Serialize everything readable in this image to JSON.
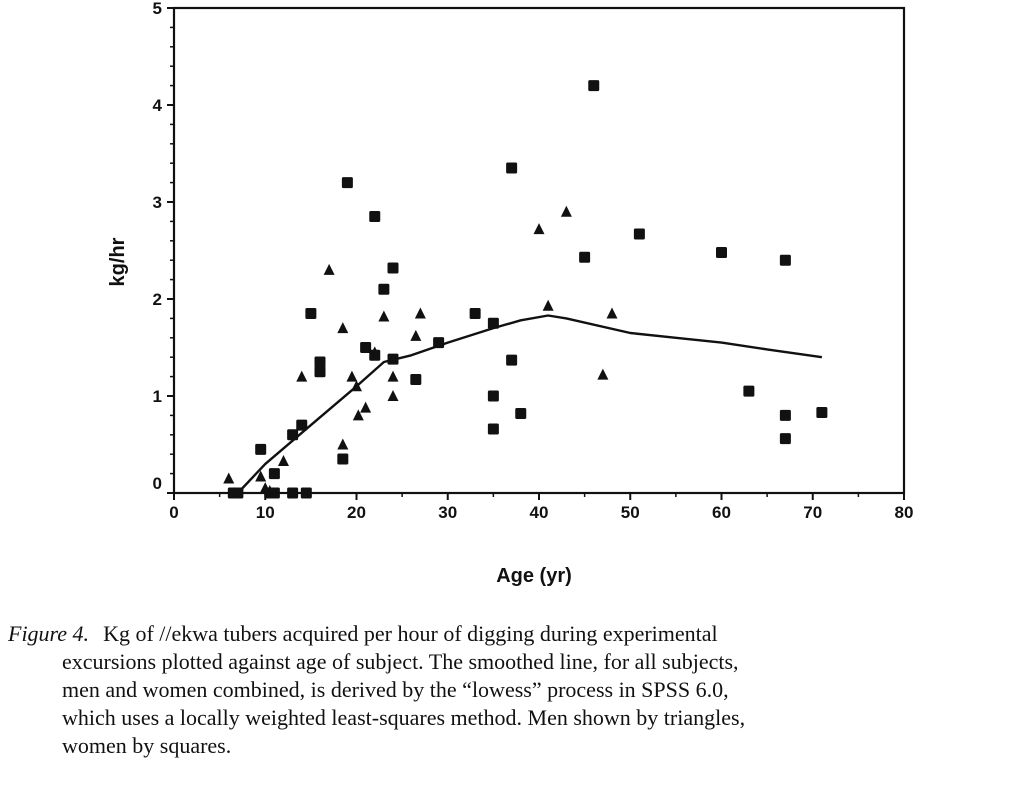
{
  "chart_data": {
    "type": "scatter",
    "xlabel": "Age (yr)",
    "ylabel": "kg/hr",
    "xlim": [
      0,
      80
    ],
    "ylim": [
      0,
      5
    ],
    "x_ticks": [
      0,
      10,
      20,
      30,
      40,
      50,
      60,
      70,
      80
    ],
    "y_ticks": [
      0,
      1,
      2,
      3,
      4,
      5
    ],
    "grid": false,
    "legend": "none",
    "series": [
      {
        "marker": "triangle",
        "points": [
          [
            6.0,
            0.15
          ],
          [
            9.5,
            0.17
          ],
          [
            10.0,
            0.05
          ],
          [
            10.5,
            0.02
          ],
          [
            12.0,
            0.33
          ],
          [
            14.0,
            1.2
          ],
          [
            17.0,
            2.3
          ],
          [
            18.5,
            0.5
          ],
          [
            18.5,
            1.7
          ],
          [
            19.5,
            1.2
          ],
          [
            20.0,
            1.1
          ],
          [
            20.2,
            0.8
          ],
          [
            21.0,
            0.88
          ],
          [
            22.0,
            1.45
          ],
          [
            23.0,
            1.82
          ],
          [
            24.0,
            1.0
          ],
          [
            24.0,
            1.2
          ],
          [
            26.5,
            1.62
          ],
          [
            27.0,
            1.85
          ],
          [
            40.0,
            2.72
          ],
          [
            41.0,
            1.93
          ],
          [
            43.0,
            2.9
          ],
          [
            47.0,
            1.22
          ],
          [
            48.0,
            1.85
          ]
        ]
      },
      {
        "marker": "square",
        "points": [
          [
            6.5,
            0.0
          ],
          [
            7.0,
            0.0
          ],
          [
            9.5,
            0.45
          ],
          [
            10.5,
            0.0
          ],
          [
            11.0,
            0.2
          ],
          [
            11.0,
            0.0
          ],
          [
            13.0,
            0.0
          ],
          [
            13.0,
            0.6
          ],
          [
            14.0,
            0.7
          ],
          [
            14.5,
            0.0
          ],
          [
            15.0,
            1.85
          ],
          [
            16.0,
            1.35
          ],
          [
            16.0,
            1.25
          ],
          [
            18.5,
            0.35
          ],
          [
            19.0,
            3.2
          ],
          [
            21.0,
            1.5
          ],
          [
            22.0,
            2.85
          ],
          [
            22.0,
            1.42
          ],
          [
            23.0,
            2.1
          ],
          [
            24.0,
            2.32
          ],
          [
            24.0,
            1.38
          ],
          [
            26.5,
            1.17
          ],
          [
            29.0,
            1.55
          ],
          [
            33.0,
            1.85
          ],
          [
            35.0,
            1.75
          ],
          [
            35.0,
            1.0
          ],
          [
            35.0,
            0.66
          ],
          [
            37.0,
            3.35
          ],
          [
            37.0,
            1.37
          ],
          [
            38.0,
            0.82
          ],
          [
            45.0,
            2.43
          ],
          [
            46.0,
            4.2
          ],
          [
            51.0,
            2.67
          ],
          [
            60.0,
            2.48
          ],
          [
            63.0,
            1.05
          ],
          [
            67.0,
            2.4
          ],
          [
            67.0,
            0.8
          ],
          [
            67.0,
            0.56
          ],
          [
            71.0,
            0.83
          ]
        ]
      }
    ],
    "smoothed_line": {
      "x": [
        7,
        10,
        15,
        20,
        23,
        26,
        30,
        35,
        38,
        41,
        43,
        50,
        55,
        60,
        65,
        71
      ],
      "y": [
        0.0,
        0.3,
        0.7,
        1.1,
        1.35,
        1.42,
        1.55,
        1.7,
        1.78,
        1.83,
        1.8,
        1.65,
        1.6,
        1.55,
        1.48,
        1.4
      ]
    }
  },
  "caption": {
    "figure_label": "Figure 4.",
    "lines": [
      "Kg of //ekwa tubers acquired per hour of digging during experimental",
      "excursions plotted against age of subject. The smoothed line, for all subjects,",
      "men and women combined, is derived by the “lowess” process in SPSS 6.0,",
      "which uses a locally weighted least-squares method. Men shown by triangles,",
      "women by squares."
    ]
  }
}
